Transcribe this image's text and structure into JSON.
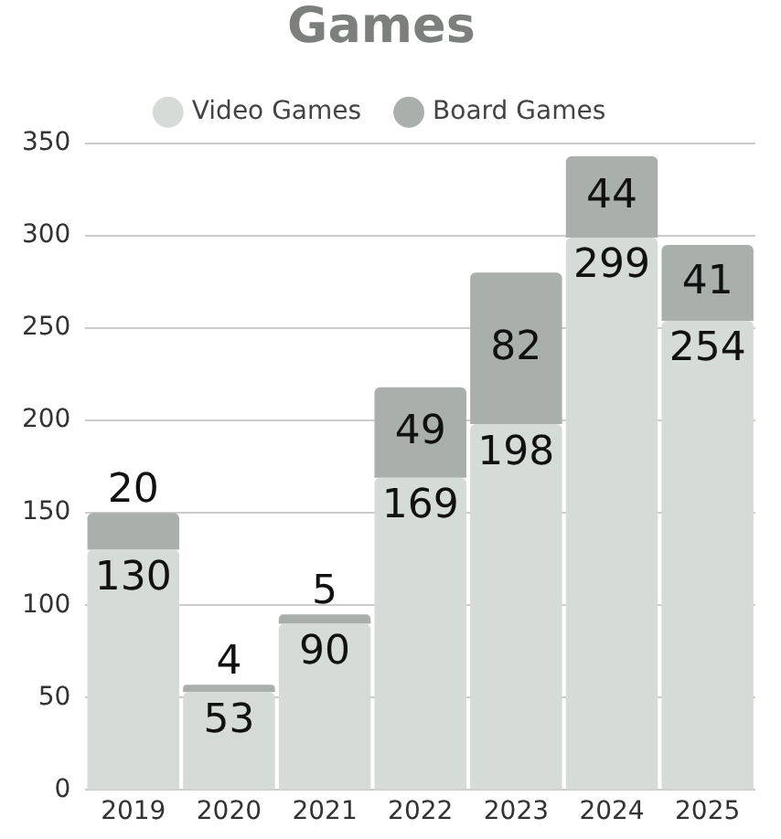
{
  "chart_data": {
    "type": "bar",
    "title": "Games",
    "stacked": true,
    "legend": "top",
    "grid": "y",
    "data_labels": true,
    "categories": [
      "2019",
      "2020",
      "2021",
      "2022",
      "2023",
      "2024",
      "2025"
    ],
    "ylim": [
      0,
      350
    ],
    "yticks": [
      0,
      50,
      100,
      150,
      200,
      250,
      300,
      350
    ],
    "series": [
      {
        "name": "Video Games",
        "color": "#d5dcd7",
        "values": [
          130,
          53,
          90,
          169,
          198,
          299,
          254
        ]
      },
      {
        "name": "Board Games",
        "color": "#a9b0ac",
        "values": [
          20,
          4,
          5,
          49,
          82,
          44,
          41
        ]
      }
    ]
  }
}
